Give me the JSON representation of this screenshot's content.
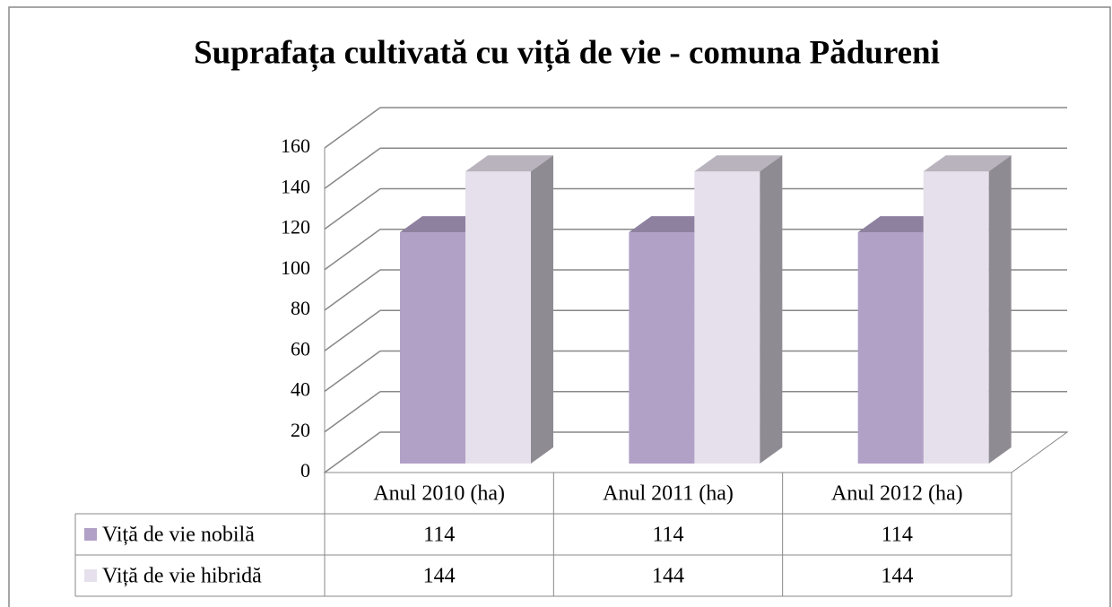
{
  "chart_data": {
    "type": "bar3d",
    "title": "Suprafața cultivată cu viță de vie - comuna Pădureni",
    "categories": [
      "Anul 2010 (ha)",
      "Anul 2011 (ha)",
      "Anul 2012 (ha)"
    ],
    "series": [
      {
        "name": "Viță de vie nobilă",
        "color": "#b2a1c7",
        "values": [
          114,
          114,
          114
        ]
      },
      {
        "name": "Viță de vie hibridă",
        "color": "#e6e0ec",
        "values": [
          144,
          144,
          144
        ]
      }
    ],
    "ylim": [
      0,
      160
    ],
    "yticks": [
      0,
      20,
      40,
      60,
      80,
      100,
      120,
      140,
      160
    ],
    "grid": true,
    "legend": "data-table"
  }
}
